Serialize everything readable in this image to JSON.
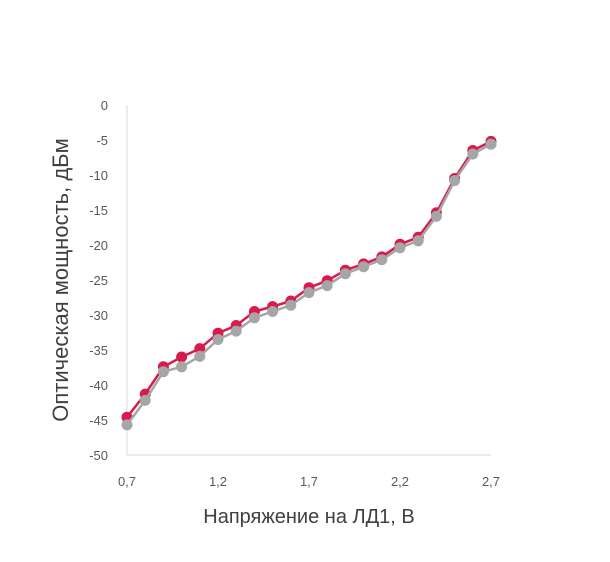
{
  "chart_data": {
    "type": "line",
    "xlabel": "Напряжение на ЛД1, В",
    "ylabel": "Оптическая мощность, дБм",
    "xlim": [
      0.7,
      2.7
    ],
    "ylim": [
      -50,
      0
    ],
    "x_ticks": [
      "0,7",
      "1,2",
      "1,7",
      "2,2",
      "2,7"
    ],
    "x_tick_values": [
      0.7,
      1.2,
      1.7,
      2.2,
      2.7
    ],
    "y_ticks": [
      "0",
      "-5",
      "-10",
      "-15",
      "-20",
      "-25",
      "-30",
      "-35",
      "-40",
      "-45",
      "-50"
    ],
    "y_tick_values": [
      0,
      -5,
      -10,
      -15,
      -20,
      -25,
      -30,
      -35,
      -40,
      -45,
      -50
    ],
    "grid": false,
    "legend": "none",
    "x": [
      0.7,
      0.8,
      0.9,
      1.0,
      1.1,
      1.2,
      1.3,
      1.4,
      1.5,
      1.6,
      1.7,
      1.8,
      1.9,
      2.0,
      2.1,
      2.2,
      2.3,
      2.4,
      2.5,
      2.6,
      2.7
    ],
    "series": [
      {
        "color": "#d81b4a",
        "values": [
          -44.6,
          -41.3,
          -37.4,
          -36.0,
          -34.8,
          -32.6,
          -31.5,
          -29.5,
          -28.8,
          -28.0,
          -26.1,
          -25.1,
          -23.6,
          -22.7,
          -21.7,
          -19.9,
          -18.9,
          -15.4,
          -10.5,
          -6.5,
          -5.2
        ]
      },
      {
        "color": "#a6a6a6",
        "values": [
          -45.7,
          -42.2,
          -38.1,
          -37.4,
          -35.9,
          -33.5,
          -32.3,
          -30.4,
          -29.5,
          -28.6,
          -26.8,
          -25.8,
          -24.1,
          -23.1,
          -22.1,
          -20.4,
          -19.4,
          -15.9,
          -10.8,
          -7.0,
          -5.6
        ]
      }
    ]
  }
}
